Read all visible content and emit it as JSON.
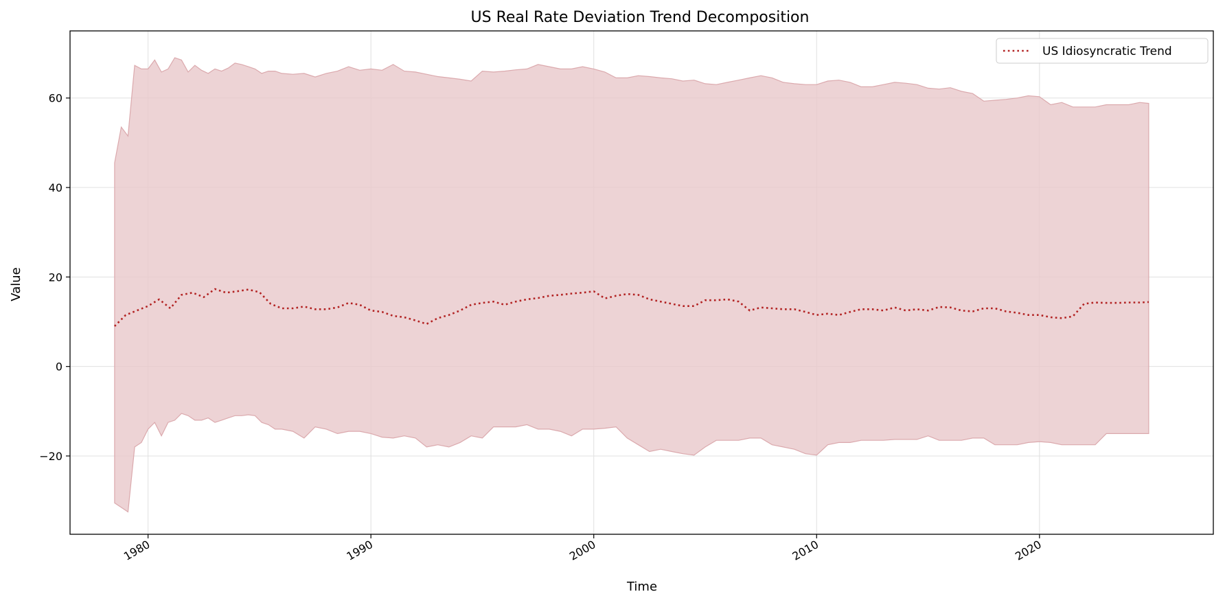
{
  "chart_data": {
    "type": "line",
    "title": "US Real Rate Deviation Trend Decomposition",
    "xlabel": "Time",
    "ylabel": "Value",
    "xlim": [
      1976.5,
      2027.8
    ],
    "ylim": [
      -37.5,
      75
    ],
    "x_ticks": [
      1980,
      1990,
      2000,
      2010,
      2020
    ],
    "y_ticks": [
      -20,
      0,
      20,
      40,
      60
    ],
    "x_tick_labels": [
      "1980",
      "1990",
      "2000",
      "2010",
      "2020"
    ],
    "y_tick_labels": [
      "−20",
      "0",
      "20",
      "40",
      "60"
    ],
    "grid": true,
    "legend": {
      "position": "top-right",
      "entries": [
        "US Idiosyncratic Trend"
      ]
    },
    "colors": {
      "trend": "#b22222",
      "band_fill": "#e8c8cb",
      "band_edge": "#dba9ad"
    },
    "series": [
      {
        "name": "US Idiosyncratic Trend",
        "style": "dotted",
        "x": [
          1978.5,
          1979.0,
          1979.5,
          1980.0,
          1980.5,
          1981.0,
          1981.5,
          1982.0,
          1982.5,
          1983.0,
          1983.5,
          1984.0,
          1984.5,
          1985.0,
          1985.5,
          1986.0,
          1986.5,
          1987.0,
          1987.5,
          1988.0,
          1988.5,
          1989.0,
          1989.5,
          1990.0,
          1990.5,
          1991.0,
          1991.5,
          1992.0,
          1992.5,
          1993.0,
          1993.5,
          1994.0,
          1994.5,
          1995.0,
          1995.5,
          1996.0,
          1996.5,
          1997.0,
          1997.5,
          1998.0,
          1998.5,
          1999.0,
          1999.5,
          2000.0,
          2000.5,
          2001.0,
          2001.5,
          2002.0,
          2002.5,
          2003.0,
          2003.5,
          2004.0,
          2004.5,
          2005.0,
          2005.5,
          2006.0,
          2006.5,
          2007.0,
          2007.5,
          2008.0,
          2008.5,
          2009.0,
          2009.5,
          2010.0,
          2010.5,
          2011.0,
          2011.5,
          2012.0,
          2012.5,
          2013.0,
          2013.5,
          2014.0,
          2014.5,
          2015.0,
          2015.5,
          2016.0,
          2016.5,
          2017.0,
          2017.5,
          2018.0,
          2018.5,
          2019.0,
          2019.5,
          2020.0,
          2020.5,
          2021.0,
          2021.5,
          2022.0,
          2022.5,
          2023.0,
          2023.5,
          2024.0,
          2024.5,
          2024.9
        ],
        "y": [
          9,
          11.5,
          12.5,
          13.5,
          15,
          13,
          16,
          16.5,
          15.5,
          17.3,
          16.5,
          16.8,
          17.2,
          16.6,
          14,
          13,
          13,
          13.4,
          12.8,
          12.8,
          13.2,
          14.2,
          13.8,
          12.5,
          12.2,
          11.3,
          11,
          10.3,
          9.5,
          10.8,
          11.5,
          12.5,
          13.8,
          14.2,
          14.5,
          13.8,
          14.5,
          15,
          15.3,
          15.8,
          16,
          16.3,
          16.5,
          16.8,
          15.2,
          15.8,
          16.2,
          16,
          15,
          14.5,
          14,
          13.5,
          13.5,
          14.8,
          14.8,
          15,
          14.5,
          12.5,
          13.2,
          13,
          12.8,
          12.8,
          12.2,
          11.5,
          11.8,
          11.5,
          12.2,
          12.8,
          12.8,
          12.5,
          13.2,
          12.5,
          12.8,
          12.5,
          13.3,
          13.2,
          12.5,
          12.3,
          13,
          13,
          12.3,
          12,
          11.5,
          11.5,
          11,
          10.8,
          11.2,
          14,
          14.3,
          14.2,
          14.2,
          14.3,
          14.3,
          14.4
        ]
      }
    ],
    "band": {
      "x": [
        1978.5,
        1978.8,
        1979.1,
        1979.4,
        1979.7,
        1980.0,
        1980.3,
        1980.6,
        1980.9,
        1981.2,
        1981.5,
        1981.8,
        1982.1,
        1982.4,
        1982.7,
        1983.0,
        1983.3,
        1983.6,
        1983.9,
        1984.2,
        1984.5,
        1984.8,
        1985.1,
        1985.4,
        1985.7,
        1986.0,
        1986.5,
        1987.0,
        1987.5,
        1988.0,
        1988.5,
        1989.0,
        1989.5,
        1990.0,
        1990.5,
        1991.0,
        1991.5,
        1992.0,
        1992.5,
        1993.0,
        1993.5,
        1994.0,
        1994.5,
        1995.0,
        1995.5,
        1996.0,
        1996.5,
        1997.0,
        1997.5,
        1998.0,
        1998.5,
        1999.0,
        1999.5,
        2000.0,
        2000.5,
        2001.0,
        2001.5,
        2002.0,
        2002.5,
        2003.0,
        2003.5,
        2004.0,
        2004.5,
        2005.0,
        2005.5,
        2006.0,
        2006.5,
        2007.0,
        2007.5,
        2008.0,
        2008.5,
        2009.0,
        2009.5,
        2010.0,
        2010.5,
        2011.0,
        2011.5,
        2012.0,
        2012.5,
        2013.0,
        2013.5,
        2014.0,
        2014.5,
        2015.0,
        2015.5,
        2016.0,
        2016.5,
        2017.0,
        2017.5,
        2018.0,
        2018.5,
        2019.0,
        2019.5,
        2020.0,
        2020.5,
        2021.0,
        2021.5,
        2022.0,
        2022.5,
        2023.0,
        2023.5,
        2024.0,
        2024.5,
        2024.9
      ],
      "upper": [
        45.5,
        53.5,
        51.5,
        67.3,
        66.5,
        66.5,
        68.5,
        65.8,
        66.5,
        69,
        68.5,
        65.8,
        67.3,
        66.2,
        65.5,
        66.5,
        66,
        66.7,
        67.8,
        67.5,
        67,
        66.5,
        65.5,
        66,
        66,
        65.5,
        65.3,
        65.5,
        64.7,
        65.5,
        66,
        67,
        66.2,
        66.5,
        66.2,
        67.5,
        66,
        65.8,
        65.3,
        64.8,
        64.5,
        64.2,
        63.8,
        66,
        65.8,
        66,
        66.3,
        66.5,
        67.5,
        67,
        66.5,
        66.5,
        67,
        66.5,
        65.8,
        64.5,
        64.5,
        65,
        64.8,
        64.5,
        64.3,
        63.8,
        64,
        63.2,
        63,
        63.5,
        64,
        64.5,
        65,
        64.5,
        63.5,
        63.2,
        63,
        63,
        63.8,
        64,
        63.5,
        62.5,
        62.5,
        63,
        63.5,
        63.3,
        63,
        62.2,
        62,
        62.3,
        61.5,
        61,
        59.3,
        59.5,
        59.7,
        60,
        60.5,
        60.3,
        58.5,
        59,
        58,
        58,
        58,
        58.5,
        58.5,
        58.5,
        59,
        58.8
      ],
      "lower": [
        -30.5,
        -31.5,
        -32.5,
        -18,
        -17,
        -14,
        -12.5,
        -15.5,
        -12.5,
        -12,
        -10.5,
        -11,
        -12,
        -12,
        -11.5,
        -12.5,
        -12,
        -11.5,
        -11,
        -11,
        -10.8,
        -11,
        -12.5,
        -13,
        -14,
        -14,
        -14.5,
        -16,
        -13.5,
        -14,
        -15,
        -14.5,
        -14.5,
        -15,
        -15.8,
        -16,
        -15.5,
        -16,
        -18,
        -17.5,
        -18,
        -17,
        -15.5,
        -16,
        -13.5,
        -13.5,
        -13.5,
        -13,
        -14,
        -14,
        -14.5,
        -15.5,
        -14,
        -14,
        -13.8,
        -13.5,
        -16,
        -17.5,
        -19,
        -18.5,
        -19,
        -19.5,
        -19.8,
        -18,
        -16.5,
        -16.5,
        -16.5,
        -16,
        -16,
        -17.5,
        -18,
        -18.5,
        -19.5,
        -19.8,
        -17.5,
        -17,
        -17,
        -16.5,
        -16.5,
        -16.5,
        -16.3,
        -16.3,
        -16.3,
        -15.5,
        -16.5,
        -16.5,
        -16.5,
        -16,
        -16,
        -17.5,
        -17.5,
        -17.5,
        -17,
        -16.8,
        -17,
        -17.5,
        -17.5,
        -17.5,
        -17.5,
        -15,
        -15,
        -15,
        -15,
        -15
      ]
    }
  }
}
